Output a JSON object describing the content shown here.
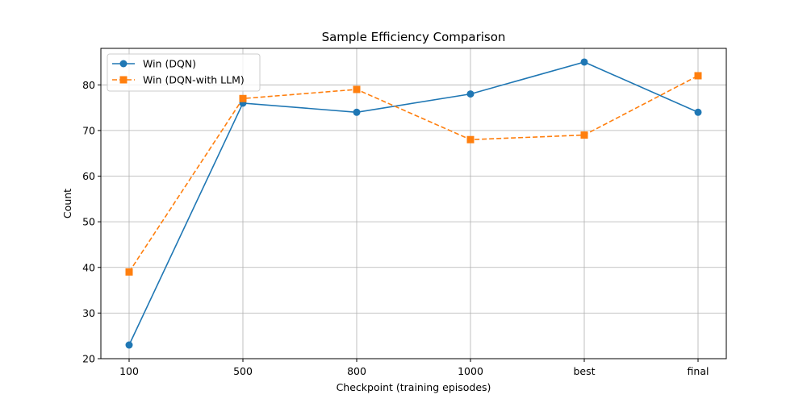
{
  "chart_data": {
    "type": "line",
    "title": "Sample Efficiency Comparison",
    "xlabel": "Checkpoint (training episodes)",
    "ylabel": "Count",
    "categories": [
      "100",
      "500",
      "800",
      "1000",
      "best",
      "final"
    ],
    "ylim": [
      20,
      88
    ],
    "yticks": [
      20,
      30,
      40,
      50,
      60,
      70,
      80
    ],
    "grid": true,
    "legend_position": "upper-left",
    "series": [
      {
        "name": "Win (DQN)",
        "values": [
          23,
          76,
          74,
          78,
          85,
          74
        ],
        "color": "#1f77b4",
        "line_style": "solid",
        "marker": "circle"
      },
      {
        "name": "Win (DQN-with LLM)",
        "values": [
          39,
          77,
          79,
          68,
          69,
          82
        ],
        "color": "#ff7f0e",
        "line_style": "dashed",
        "marker": "square"
      }
    ]
  }
}
